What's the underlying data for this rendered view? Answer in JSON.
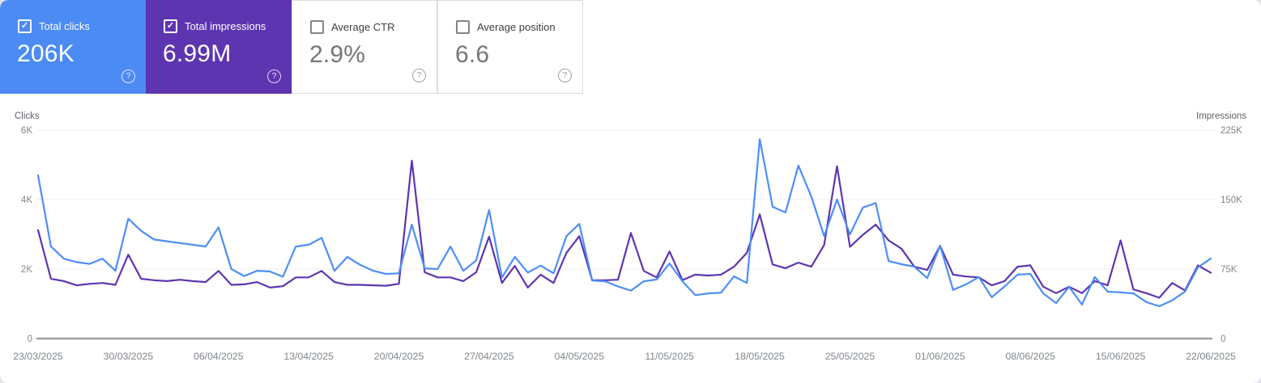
{
  "icons": {
    "check": "✓",
    "help": "?"
  },
  "cards": [
    {
      "label": "Total clicks",
      "value": "206K",
      "selected": true,
      "bg": "#4c8bf4"
    },
    {
      "label": "Total impressions",
      "value": "6.99M",
      "selected": true,
      "bg": "#5e35b1"
    },
    {
      "label": "Average CTR",
      "value": "2.9%",
      "selected": false,
      "bg": ""
    },
    {
      "label": "Average position",
      "value": "6.6",
      "selected": false,
      "bg": ""
    }
  ],
  "chart_data": {
    "type": "line",
    "x_labels": [
      "23/03/2025",
      "30/03/2025",
      "06/04/2025",
      "13/04/2025",
      "20/04/2025",
      "27/04/2025",
      "04/05/2025",
      "11/05/2025",
      "18/05/2025",
      "25/05/2025",
      "01/06/2025",
      "08/06/2025",
      "15/06/2025",
      "22/06/2025"
    ],
    "x_label_step_days": 7,
    "days": 92,
    "left_axis": {
      "title": "Clicks",
      "tick_labels": [
        "6K",
        "4K",
        "2K",
        "0"
      ],
      "tick_values": [
        6000,
        4000,
        2000,
        0
      ],
      "max": 6000
    },
    "right_axis": {
      "title": "Impressions",
      "tick_labels": [
        "225K",
        "150K",
        "75K",
        "0"
      ],
      "tick_values": [
        225000,
        150000,
        75000,
        0
      ],
      "max": 225000
    },
    "grid": true,
    "legend_position": "none",
    "series": [
      {
        "name": "Total clicks",
        "axis": "left",
        "color": "#4d8ef7",
        "values": [
          4700,
          2650,
          2300,
          2200,
          2150,
          2300,
          1950,
          3450,
          3100,
          2850,
          2800,
          2750,
          2700,
          2650,
          3200,
          2000,
          1800,
          1950,
          1930,
          1780,
          2650,
          2700,
          2900,
          1950,
          2350,
          2120,
          1950,
          1860,
          1880,
          3280,
          2020,
          2000,
          2650,
          1950,
          2250,
          3700,
          1760,
          2350,
          1900,
          2100,
          1880,
          2950,
          3300,
          1670,
          1650,
          1500,
          1380,
          1650,
          1700,
          2160,
          1650,
          1250,
          1300,
          1320,
          1790,
          1600,
          5740,
          3790,
          3630,
          4980,
          4090,
          2950,
          4000,
          3000,
          3770,
          3900,
          2230,
          2140,
          2070,
          1740,
          2670,
          1400,
          1560,
          1770,
          1190,
          1500,
          1840,
          1860,
          1300,
          1020,
          1490,
          980,
          1770,
          1350,
          1330,
          1300,
          1050,
          930,
          1100,
          1350,
          2050,
          2300
        ]
      },
      {
        "name": "Total impressions",
        "axis": "right",
        "color": "#5e35b1",
        "values": [
          117000,
          64500,
          62000,
          57500,
          59000,
          60000,
          58000,
          90500,
          64500,
          63000,
          62000,
          63500,
          62000,
          61000,
          73000,
          58000,
          58500,
          61000,
          55000,
          56500,
          66000,
          66000,
          73000,
          61000,
          58000,
          58000,
          57500,
          57000,
          59000,
          192000,
          71500,
          66000,
          66000,
          62000,
          71500,
          110000,
          60000,
          78500,
          55000,
          69000,
          60000,
          92500,
          110500,
          63000,
          63000,
          63500,
          114000,
          73000,
          66000,
          94000,
          63000,
          69000,
          68000,
          69000,
          77500,
          92500,
          134000,
          80000,
          76000,
          82000,
          77500,
          101000,
          186000,
          99000,
          112000,
          123000,
          106000,
          97000,
          77500,
          74000,
          100000,
          69000,
          67000,
          66000,
          57500,
          62000,
          77500,
          79000,
          56000,
          49000,
          56000,
          49000,
          62000,
          57500,
          106000,
          53000,
          49000,
          44000,
          60000,
          52000,
          79000,
          71000
        ]
      }
    ]
  }
}
